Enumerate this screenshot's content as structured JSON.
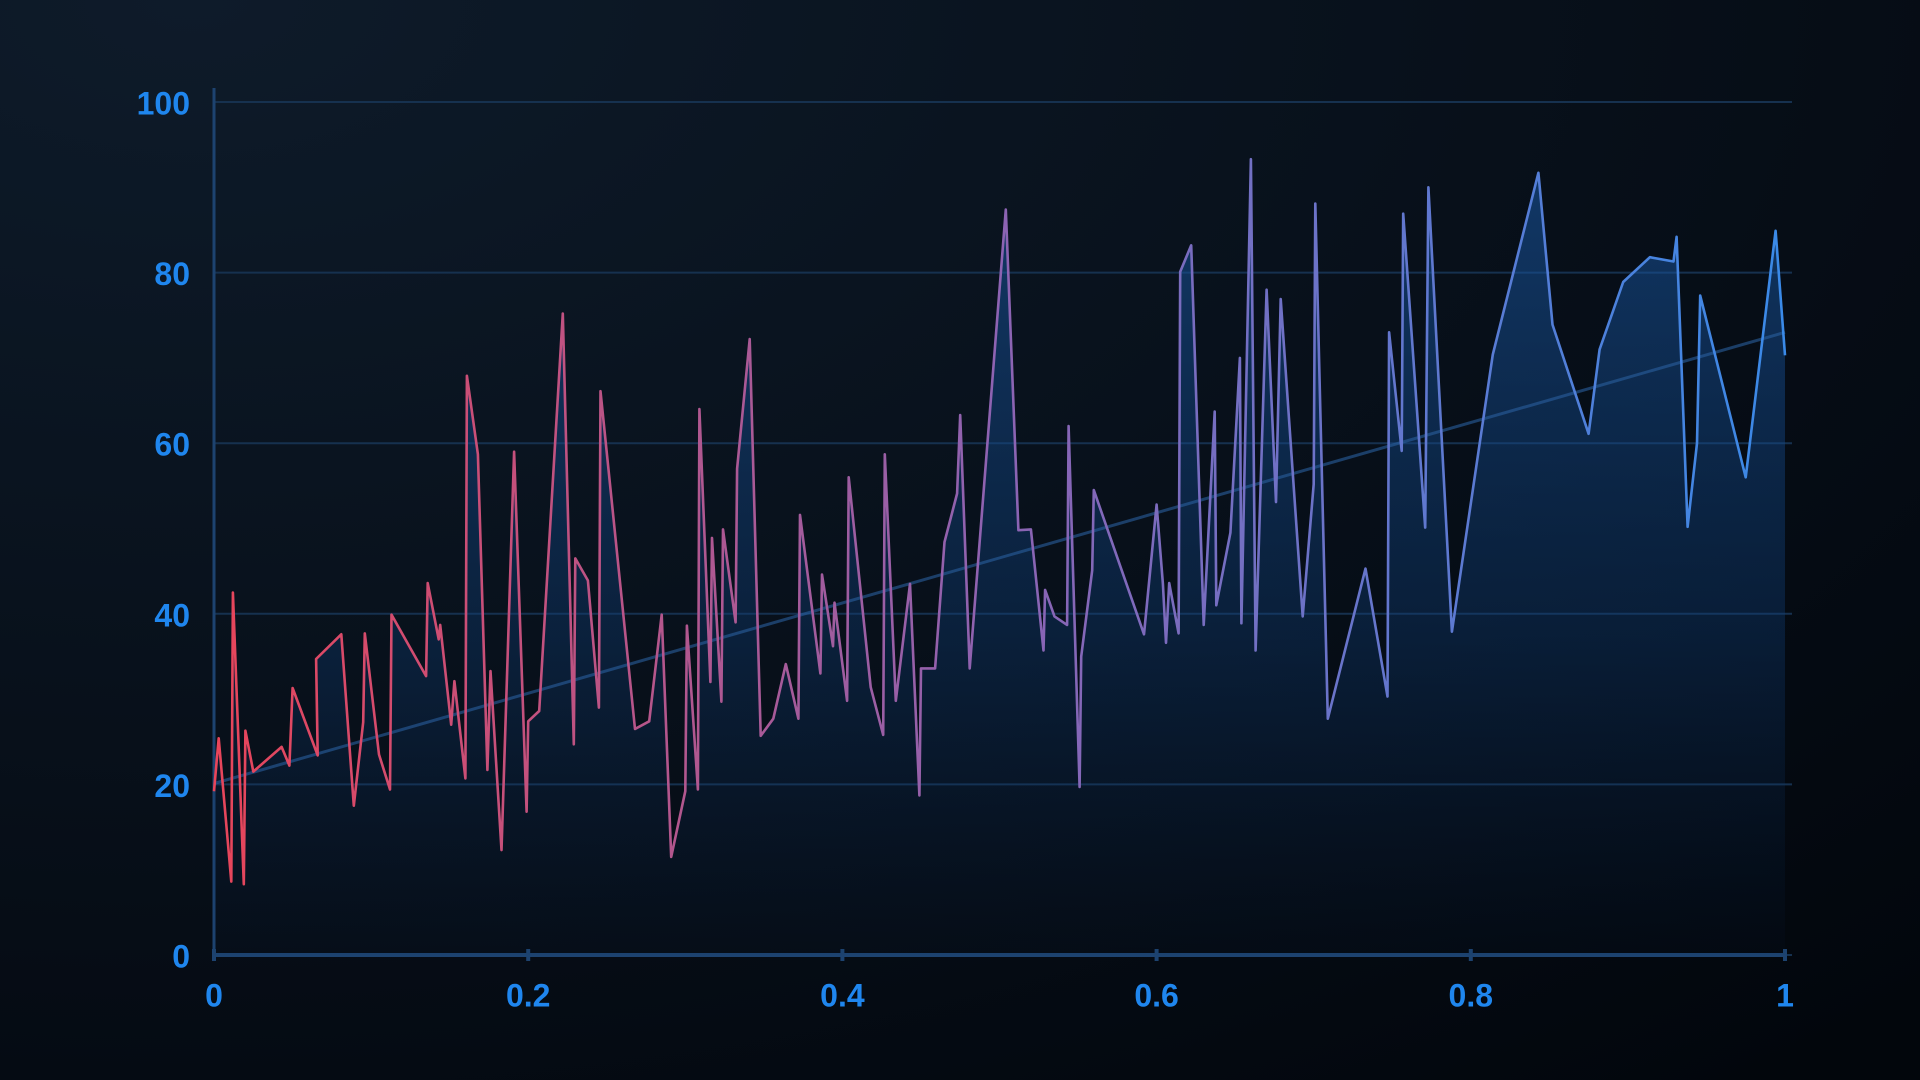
{
  "chart_data": {
    "type": "line",
    "x": [
      0,
      0.003,
      0.011,
      0.012,
      0.019,
      0.02,
      0.025,
      0.043,
      0.048,
      0.05,
      0.066,
      0.065,
      0.081,
      0.089,
      0.095,
      0.096,
      0.105,
      0.112,
      0.113,
      0.135,
      0.136,
      0.143,
      0.144,
      0.151,
      0.153,
      0.16,
      0.161,
      0.168,
      0.174,
      0.176,
      0.183,
      0.191,
      0.199,
      0.2,
      0.207,
      0.222,
      0.229,
      0.23,
      0.238,
      0.245,
      0.246,
      0.268,
      0.277,
      0.285,
      0.291,
      0.3,
      0.301,
      0.308,
      0.309,
      0.316,
      0.317,
      0.323,
      0.324,
      0.332,
      0.333,
      0.341,
      0.348,
      0.356,
      0.364,
      0.372,
      0.373,
      0.386,
      0.387,
      0.394,
      0.395,
      0.403,
      0.404,
      0.418,
      0.426,
      0.427,
      0.434,
      0.443,
      0.449,
      0.45,
      0.459,
      0.465,
      0.473,
      0.475,
      0.481,
      0.504,
      0.512,
      0.52,
      0.528,
      0.529,
      0.535,
      0.543,
      0.544,
      0.551,
      0.552,
      0.559,
      0.56,
      0.592,
      0.6,
      0.604,
      0.606,
      0.608,
      0.614,
      0.615,
      0.622,
      0.63,
      0.637,
      0.638,
      0.647,
      0.653,
      0.654,
      0.66,
      0.663,
      0.67,
      0.676,
      0.679,
      0.693,
      0.7,
      0.701,
      0.709,
      0.733,
      0.747,
      0.748,
      0.756,
      0.757,
      0.771,
      0.773,
      0.788,
      0.814,
      0.843,
      0.852,
      0.875,
      0.882,
      0.897,
      0.914,
      0.929,
      0.931,
      0.938,
      0.944,
      0.946,
      0.975,
      0.994,
      1
    ],
    "values": [
      19.2,
      25.4,
      8.6,
      42.5,
      8.3,
      26.3,
      21.5,
      24.4,
      22.2,
      31.3,
      23.4,
      34.7,
      37.6,
      17.5,
      27.3,
      37.7,
      23.5,
      19.4,
      39.9,
      32.7,
      43.6,
      37,
      38.7,
      27,
      32.1,
      20.7,
      67.9,
      58.7,
      21.7,
      33.3,
      12.3,
      59,
      16.8,
      27.4,
      28.6,
      75.2,
      24.7,
      46.5,
      43.9,
      29,
      66.1,
      26.5,
      27.4,
      39.9,
      11.5,
      19.2,
      38.6,
      19.4,
      64,
      32,
      48.9,
      29.7,
      49.9,
      39,
      57,
      72.2,
      25.7,
      27.7,
      34.1,
      27.7,
      51.6,
      33,
      44.6,
      36.2,
      41.3,
      29.8,
      56,
      31.4,
      25.8,
      58.7,
      29.8,
      43.5,
      18.7,
      33.6,
      33.6,
      48.4,
      54.1,
      63.3,
      33.6,
      87.4,
      49.8,
      49.9,
      35.7,
      42.8,
      39.7,
      38.7,
      62,
      19.7,
      35,
      45.1,
      54.5,
      37.6,
      52.8,
      43.5,
      36.6,
      43.6,
      37.7,
      80.1,
      83.2,
      38.7,
      63.7,
      41,
      49.5,
      70,
      38.9,
      93.3,
      35.7,
      78,
      53.1,
      76.9,
      39.7,
      55.2,
      88.1,
      27.7,
      45.3,
      30.3,
      73,
      59.1,
      86.9,
      50.1,
      90,
      37.9,
      70.4,
      91.7,
      73.9,
      61.1,
      71,
      78.9,
      81.8,
      81.3,
      84.2,
      50.2,
      60,
      77.3,
      56,
      84.9,
      70.3
    ],
    "line_colors": [
      "#e8455a",
      "#8d63b2",
      "#3a8ae8"
    ],
    "area": true,
    "trend_line": {
      "x": [
        0,
        1
      ],
      "values": [
        20.1,
        73
      ]
    },
    "xlim": [
      0,
      1
    ],
    "ylim": [
      0,
      100
    ],
    "xticks": [
      0,
      0.2,
      0.4,
      0.6,
      0.8,
      1
    ],
    "yticks": [
      0,
      20,
      40,
      60,
      80,
      100
    ],
    "grid": true
  }
}
